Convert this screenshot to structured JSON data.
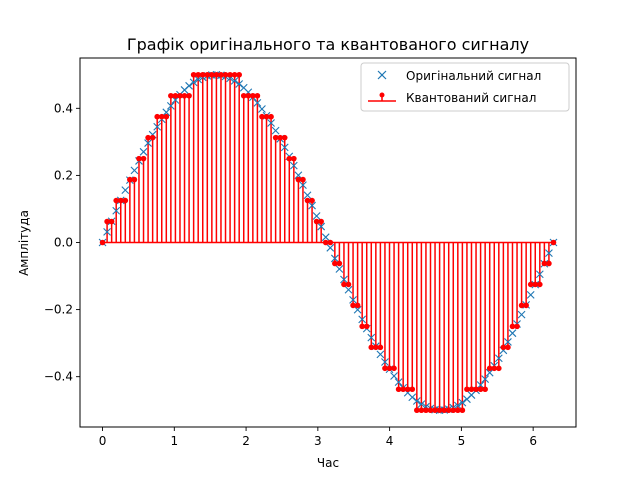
{
  "chart_data": {
    "type": "line",
    "title": "Графік оригінального та квантованого сигналу",
    "xlabel": "Час",
    "ylabel": "Амплітуда",
    "xlim": [
      -0.314,
      6.597
    ],
    "ylim": [
      -0.55,
      0.55
    ],
    "xticks": [
      0,
      1,
      2,
      3,
      4,
      5,
      6
    ],
    "yticks": [
      -0.4,
      -0.2,
      0.0,
      0.2,
      0.4
    ],
    "ytick_labels": [
      "−0.4",
      "−0.2",
      "0.0",
      "0.2",
      "0.4"
    ],
    "grid": false,
    "legend_position": "top-right",
    "signal": {
      "function": "0.5*sin(t)",
      "t_start": 0,
      "t_end": 6.2832,
      "samples": 100,
      "quantization_levels": 16,
      "quantization_step": 0.0625
    },
    "series": [
      {
        "name": "Оригінальний сигнал",
        "marker": "x",
        "color": "#1f77b4",
        "style": "markers"
      },
      {
        "name": "Квантований сигнал",
        "marker": "o",
        "color": "#ff0000",
        "style": "stem"
      }
    ]
  }
}
